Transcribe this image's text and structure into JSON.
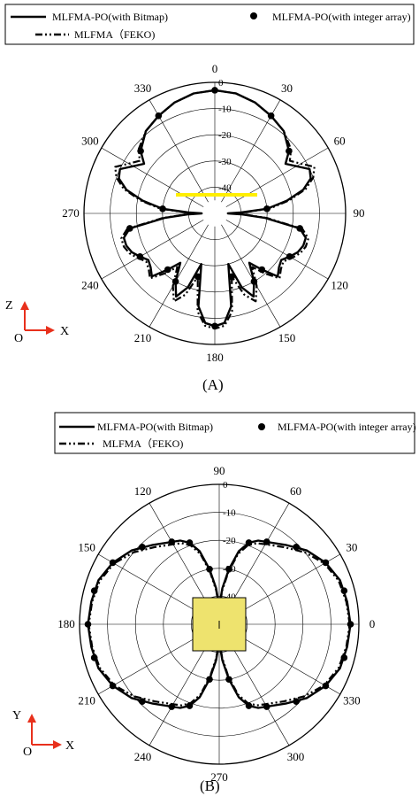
{
  "chart_data": [
    {
      "type": "polar-line",
      "panel_label": "(A)",
      "legend": {
        "bitmap": "MLFMA-PO(with Bitmap)",
        "integer": "MLFMA-PO(with integer array)",
        "feko": "MLFMA（FEKO)"
      },
      "angle_ticks": [
        "0",
        "30",
        "60",
        "90",
        "120",
        "150",
        "180",
        "210",
        "240",
        "270",
        "300",
        "330"
      ],
      "radial_ticks": [
        "0",
        "-10",
        "-20",
        "-30",
        "-40"
      ],
      "r_range_db": [
        -50,
        0
      ],
      "angle_zero": "top",
      "angle_direction": "clockwise",
      "axes_icon": {
        "up": "Z",
        "right": "X",
        "origin": "O"
      },
      "object": "strip",
      "series": [
        {
          "key": "bitmap",
          "style": "solid",
          "angles": [
            0,
            10,
            20,
            30,
            40,
            50,
            55,
            60,
            65,
            70,
            75,
            80,
            85,
            88,
            90,
            92,
            95,
            100,
            105,
            110,
            115,
            120,
            125,
            130,
            135,
            140,
            145,
            150,
            155,
            160,
            165,
            170,
            175,
            180,
            185,
            190,
            195,
            200,
            205,
            210,
            215,
            220,
            225,
            230,
            235,
            240,
            245,
            250,
            255,
            260,
            265,
            268,
            270,
            272,
            275,
            280,
            285,
            290,
            295,
            300,
            305,
            310,
            320,
            330,
            340,
            350,
            360
          ],
          "db": [
            -3,
            -3.5,
            -5,
            -7,
            -9,
            -13,
            -17,
            -14,
            -10,
            -11,
            -15,
            -22,
            -30,
            -40,
            -45,
            -40,
            -31,
            -17,
            -14,
            -14,
            -15,
            -17,
            -19,
            -18,
            -16,
            -22,
            -27,
            -20,
            -15,
            -20,
            -30,
            -14,
            -8,
            -7,
            -8,
            -14,
            -30,
            -20,
            -15,
            -20,
            -27,
            -22,
            -16,
            -18,
            -19,
            -17,
            -15,
            -14,
            -14,
            -17,
            -31,
            -40,
            -45,
            -40,
            -30,
            -22,
            -15,
            -11,
            -10,
            -14,
            -17,
            -13,
            -9,
            -7,
            -5,
            -3.5,
            -3
          ]
        },
        {
          "key": "feko",
          "style": "dashdot",
          "angles": [
            0,
            10,
            20,
            30,
            40,
            50,
            55,
            60,
            65,
            70,
            75,
            80,
            85,
            88,
            90,
            92,
            95,
            100,
            105,
            110,
            115,
            120,
            125,
            130,
            135,
            140,
            145,
            150,
            155,
            160,
            165,
            170,
            175,
            180,
            185,
            190,
            195,
            200,
            205,
            210,
            215,
            220,
            225,
            230,
            235,
            240,
            245,
            250,
            255,
            260,
            265,
            268,
            270,
            272,
            275,
            280,
            285,
            290,
            295,
            300,
            305,
            310,
            320,
            330,
            340,
            350,
            360
          ],
          "db": [
            -3,
            -3.5,
            -5,
            -7,
            -9,
            -12,
            -15,
            -12,
            -8,
            -10,
            -14,
            -21,
            -29,
            -39,
            -44,
            -39,
            -30,
            -16,
            -13,
            -13,
            -14,
            -16,
            -18,
            -17,
            -15,
            -20,
            -25,
            -18,
            -13,
            -17,
            -25,
            -12,
            -7,
            -6,
            -7,
            -12,
            -25,
            -17,
            -13,
            -18,
            -25,
            -20,
            -15,
            -17,
            -18,
            -16,
            -14,
            -13,
            -13,
            -16,
            -30,
            -39,
            -44,
            -39,
            -29,
            -21,
            -14,
            -10,
            -8,
            -12,
            -15,
            -12,
            -9,
            -7,
            -5,
            -3.5,
            -3
          ]
        },
        {
          "key": "integer",
          "style": "markers",
          "angles": [
            0,
            30,
            330,
            50,
            310,
            85,
            275,
            100,
            260,
            120,
            240,
            140,
            220,
            150,
            210,
            165,
            195,
            180
          ],
          "db": [
            -3,
            -7,
            -7,
            -13,
            -13,
            -30,
            -30,
            -17,
            -17,
            -17,
            -17,
            -22,
            -22,
            -20,
            -20,
            -25,
            -25,
            -7
          ]
        }
      ]
    },
    {
      "type": "polar-line",
      "panel_label": "(B)",
      "legend": {
        "bitmap": "MLFMA-PO(with Bitmap)",
        "integer": "MLFMA-PO(with integer array)",
        "feko": "MLFMA（FEKO)"
      },
      "angle_ticks": [
        "0",
        "30",
        "60",
        "90",
        "120",
        "150",
        "180",
        "210",
        "240",
        "270",
        "300",
        "330"
      ],
      "radial_ticks": [
        "0",
        "-10",
        "-20",
        "-30",
        "-40"
      ],
      "r_range_db": [
        -50,
        0
      ],
      "angle_zero": "right",
      "angle_direction": "counterclockwise",
      "axes_icon": {
        "up": "Y",
        "right": "X",
        "origin": "O"
      },
      "object": "square",
      "series": [
        {
          "key": "bitmap",
          "style": "solid",
          "angles": [
            0,
            10,
            20,
            30,
            40,
            50,
            60,
            65,
            70,
            75,
            80,
            85,
            88,
            90,
            92,
            95,
            100,
            105,
            110,
            115,
            120,
            130,
            140,
            150,
            160,
            170,
            180,
            190,
            200,
            210,
            220,
            230,
            240,
            245,
            250,
            255,
            260,
            265,
            268,
            270,
            272,
            275,
            280,
            285,
            290,
            295,
            300,
            310,
            320,
            330,
            340,
            350,
            360
          ],
          "db": [
            -3,
            -3.5,
            -4,
            -6,
            -9,
            -13,
            -16,
            -17,
            -19,
            -23,
            -30,
            -37,
            -42,
            -45,
            -42,
            -37,
            -30,
            -23,
            -19,
            -17,
            -16,
            -13,
            -9,
            -6,
            -4,
            -3.5,
            -3,
            -3.5,
            -4,
            -6,
            -9,
            -13,
            -16,
            -17,
            -19,
            -23,
            -30,
            -37,
            -42,
            -45,
            -42,
            -37,
            -30,
            -23,
            -19,
            -17,
            -16,
            -13,
            -9,
            -6,
            -4,
            -3.5,
            -3
          ]
        },
        {
          "key": "feko",
          "style": "dashdot",
          "angles": [
            0,
            10,
            20,
            30,
            40,
            50,
            60,
            65,
            70,
            75,
            80,
            85,
            88,
            90,
            92,
            95,
            100,
            105,
            110,
            115,
            120,
            130,
            140,
            150,
            160,
            170,
            180,
            190,
            200,
            210,
            220,
            230,
            240,
            245,
            250,
            255,
            260,
            265,
            268,
            270,
            272,
            275,
            280,
            285,
            290,
            295,
            300,
            310,
            320,
            330,
            340,
            350,
            360
          ],
          "db": [
            -3.3,
            -3.8,
            -4.5,
            -6.5,
            -10,
            -14,
            -17,
            -18,
            -20,
            -24,
            -31,
            -38,
            -43,
            -46,
            -43,
            -38,
            -31,
            -24,
            -20,
            -18,
            -17,
            -14,
            -10,
            -6.5,
            -4.5,
            -3.8,
            -3.3,
            -3.8,
            -4.5,
            -6.5,
            -10,
            -14,
            -17,
            -18,
            -20,
            -24,
            -31,
            -38,
            -43,
            -46,
            -43,
            -38,
            -31,
            -24,
            -20,
            -18,
            -17,
            -14,
            -10,
            -6.5,
            -4.5,
            -3.8,
            -3.3
          ]
        },
        {
          "key": "integer",
          "style": "markers",
          "angles": [
            0,
            15,
            30,
            45,
            60,
            70,
            80,
            100,
            110,
            120,
            135,
            150,
            165,
            180,
            195,
            210,
            225,
            240,
            250,
            260,
            280,
            290,
            300,
            315,
            330,
            345
          ],
          "db": [
            -3,
            -3.7,
            -6,
            -11,
            -16,
            -19,
            -30,
            -30,
            -19,
            -16,
            -11,
            -6,
            -3.7,
            -3,
            -3.7,
            -6,
            -11,
            -16,
            -19,
            -30,
            -30,
            -19,
            -16,
            -11,
            -6,
            -3.7
          ]
        }
      ]
    }
  ],
  "colors": {
    "line": "#000000",
    "grid": "#000000",
    "object_a": "#ffee00",
    "object_b": "#eee36e",
    "axes_icon": "#e8301c"
  }
}
